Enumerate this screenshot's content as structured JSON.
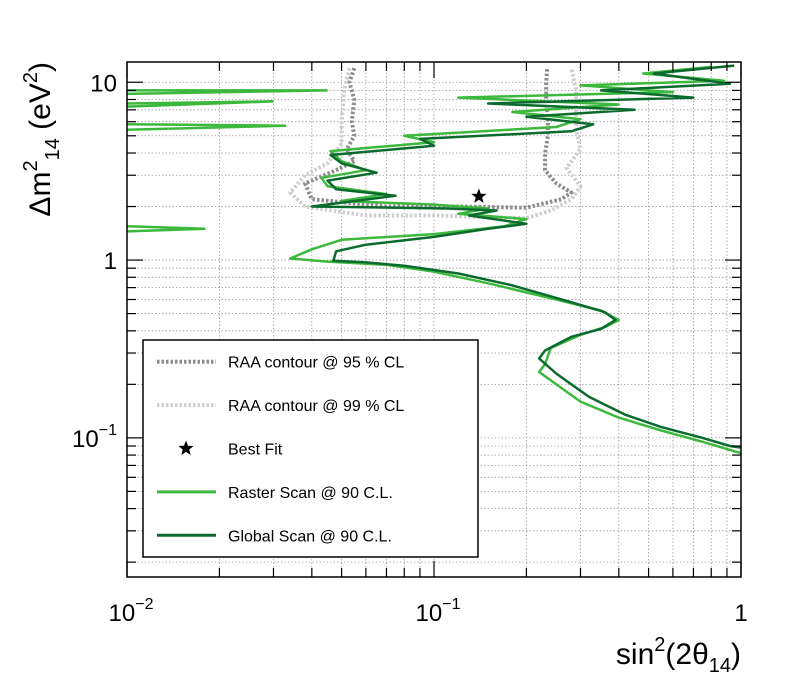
{
  "chart_data": {
    "type": "line",
    "xscale": "log",
    "yscale": "log",
    "xlim": [
      0.01,
      1
    ],
    "ylim": [
      0.0165,
      13
    ],
    "grid": true,
    "legend_placement": "bottom-left",
    "xlabel": {
      "main": "sin",
      "sup": "2",
      "after": "(2θ",
      "sub": "14",
      "close": ")"
    },
    "ylabel": {
      "delta": "Δm",
      "sup": "2",
      "sub": "14",
      "unit_open": " (eV",
      "unit_sup": "2",
      "unit_close": ")"
    },
    "xticks": [
      {
        "base": "10",
        "exp": "−2"
      },
      {
        "base": "10",
        "exp": "−1"
      },
      {
        "base": "1",
        "exp": ""
      }
    ],
    "yticks": [
      {
        "base": "10",
        "exp": "−1"
      },
      {
        "base": "1",
        "exp": ""
      },
      {
        "base": "10",
        "exp": ""
      }
    ],
    "colors": {
      "raa95": "#8c8c8c",
      "raa99": "#cfcfcf",
      "raster": "#3cb83c",
      "global": "#0b6b2e",
      "bestfit": "#000000"
    },
    "series": [
      {
        "name": "RAA contour @ 95 % CL",
        "style": "dotted",
        "key": "raa95",
        "points": [
          [
            0.055,
            12
          ],
          [
            0.053,
            10
          ],
          [
            0.055,
            8
          ],
          [
            0.054,
            6
          ],
          [
            0.055,
            5
          ],
          [
            0.052,
            4.2
          ],
          [
            0.055,
            3.6
          ],
          [
            0.048,
            3.2
          ],
          [
            0.038,
            2.7
          ],
          [
            0.04,
            2.2
          ],
          [
            0.07,
            2.0
          ],
          [
            0.12,
            2.0
          ],
          [
            0.2,
            1.97
          ],
          [
            0.26,
            2.2
          ],
          [
            0.28,
            2.4
          ],
          [
            0.25,
            2.7
          ],
          [
            0.23,
            3.2
          ],
          [
            0.23,
            4
          ],
          [
            0.235,
            5
          ],
          [
            0.235,
            6
          ],
          [
            0.232,
            8
          ],
          [
            0.232,
            10
          ],
          [
            0.234,
            12
          ]
        ]
      },
      {
        "name": "RAA contour @ 99 % CL",
        "style": "dotted",
        "key": "raa99",
        "points": [
          [
            0.053,
            12
          ],
          [
            0.051,
            9
          ],
          [
            0.05,
            6
          ],
          [
            0.05,
            4.5
          ],
          [
            0.045,
            3.5
          ],
          [
            0.038,
            3.0
          ],
          [
            0.034,
            2.4
          ],
          [
            0.038,
            2.0
          ],
          [
            0.06,
            1.78
          ],
          [
            0.1,
            1.78
          ],
          [
            0.2,
            1.72
          ],
          [
            0.24,
            1.9
          ],
          [
            0.28,
            2.2
          ],
          [
            0.3,
            2.6
          ],
          [
            0.27,
            3.3
          ],
          [
            0.3,
            4.2
          ],
          [
            0.29,
            5.5
          ],
          [
            0.29,
            7
          ],
          [
            0.29,
            9
          ],
          [
            0.28,
            12
          ]
        ]
      },
      {
        "name": "Raster Scan @ 90 C.L.",
        "style": "solid",
        "key": "raster",
        "points": [
          [
            0.8,
            12.2
          ],
          [
            0.48,
            11.2
          ],
          [
            0.88,
            10.2
          ],
          [
            0.3,
            9.6
          ],
          [
            0.6,
            8.8
          ],
          [
            0.12,
            8.2
          ],
          [
            0.4,
            7.5
          ],
          [
            0.18,
            6.8
          ],
          [
            0.3,
            6.2
          ],
          [
            0.25,
            5.6
          ],
          [
            0.08,
            5.0
          ],
          [
            0.1,
            4.6
          ],
          [
            0.046,
            4.1
          ],
          [
            0.05,
            3.6
          ],
          [
            0.06,
            3.2
          ],
          [
            0.043,
            2.9
          ],
          [
            0.045,
            2.6
          ],
          [
            0.07,
            2.35
          ],
          [
            0.05,
            2.15
          ],
          [
            0.1,
            2.05
          ],
          [
            0.15,
            1.95
          ],
          [
            0.12,
            1.82
          ],
          [
            0.2,
            1.7
          ],
          [
            0.17,
            1.55
          ],
          [
            0.1,
            1.4
          ],
          [
            0.05,
            1.3
          ],
          [
            0.04,
            1.15
          ],
          [
            0.034,
            1.02
          ],
          [
            0.045,
            0.98
          ],
          [
            0.07,
            0.94
          ],
          [
            0.1,
            0.86
          ],
          [
            0.15,
            0.74
          ],
          [
            0.25,
            0.6
          ],
          [
            0.35,
            0.52
          ],
          [
            0.4,
            0.46
          ],
          [
            0.36,
            0.42
          ],
          [
            0.3,
            0.38
          ],
          [
            0.24,
            0.32
          ],
          [
            0.23,
            0.26
          ],
          [
            0.22,
            0.235
          ],
          [
            0.25,
            0.2
          ],
          [
            0.3,
            0.16
          ],
          [
            0.4,
            0.13
          ],
          [
            0.55,
            0.11
          ],
          [
            0.75,
            0.095
          ],
          [
            1.0,
            0.082
          ]
        ]
      },
      {
        "name": "Global Scan @ 90 C.L.",
        "style": "solid",
        "key": "global",
        "points": [
          [
            0.95,
            12.4
          ],
          [
            0.52,
            11.2
          ],
          [
            0.92,
            9.8
          ],
          [
            0.35,
            9.0
          ],
          [
            0.7,
            8.2
          ],
          [
            0.15,
            7.6
          ],
          [
            0.45,
            7.0
          ],
          [
            0.2,
            6.4
          ],
          [
            0.33,
            5.8
          ],
          [
            0.28,
            5.3
          ],
          [
            0.09,
            4.8
          ],
          [
            0.1,
            4.4
          ],
          [
            0.046,
            3.9
          ],
          [
            0.05,
            3.5
          ],
          [
            0.065,
            3.1
          ],
          [
            0.045,
            2.8
          ],
          [
            0.048,
            2.5
          ],
          [
            0.075,
            2.3
          ],
          [
            0.04,
            2.0
          ],
          [
            0.11,
            1.95
          ],
          [
            0.16,
            1.9
          ],
          [
            0.13,
            1.78
          ],
          [
            0.2,
            1.6
          ],
          [
            0.15,
            1.5
          ],
          [
            0.1,
            1.35
          ],
          [
            0.06,
            1.22
          ],
          [
            0.048,
            1.12
          ],
          [
            0.047,
            0.99
          ],
          [
            0.06,
            0.97
          ],
          [
            0.08,
            0.93
          ],
          [
            0.12,
            0.84
          ],
          [
            0.18,
            0.72
          ],
          [
            0.27,
            0.59
          ],
          [
            0.36,
            0.51
          ],
          [
            0.39,
            0.46
          ],
          [
            0.35,
            0.41
          ],
          [
            0.28,
            0.37
          ],
          [
            0.23,
            0.31
          ],
          [
            0.22,
            0.28
          ],
          [
            0.25,
            0.23
          ],
          [
            0.28,
            0.2
          ],
          [
            0.32,
            0.17
          ],
          [
            0.42,
            0.135
          ],
          [
            0.55,
            0.115
          ],
          [
            0.75,
            0.1
          ],
          [
            0.92,
            0.09
          ],
          [
            1.0,
            0.088
          ]
        ]
      }
    ],
    "raster_small_islands": [
      [
        [
          0.01,
          9.0
        ],
        [
          0.045,
          9.0
        ],
        [
          0.01,
          8.6
        ]
      ],
      [
        [
          0.01,
          7.6
        ],
        [
          0.03,
          7.8
        ],
        [
          0.01,
          7.3
        ]
      ],
      [
        [
          0.01,
          5.8
        ],
        [
          0.033,
          5.7
        ],
        [
          0.01,
          5.4
        ]
      ],
      [
        [
          0.01,
          1.55
        ],
        [
          0.018,
          1.5
        ],
        [
          0.01,
          1.45
        ]
      ]
    ],
    "best_fit": {
      "name": "Best Fit",
      "x": 0.14,
      "y": 2.28
    },
    "legend": [
      {
        "label": "RAA contour @ 95 % CL",
        "key": "raa95",
        "style": "dotted"
      },
      {
        "label": "RAA contour @ 99 % CL",
        "key": "raa99",
        "style": "dotted"
      },
      {
        "label": "Best Fit",
        "key": "bestfit",
        "style": "marker"
      },
      {
        "label": "Raster Scan @ 90 C.L.",
        "key": "raster",
        "style": "solid"
      },
      {
        "label": "Global Scan @ 90 C.L.",
        "key": "global",
        "style": "solid"
      }
    ]
  }
}
